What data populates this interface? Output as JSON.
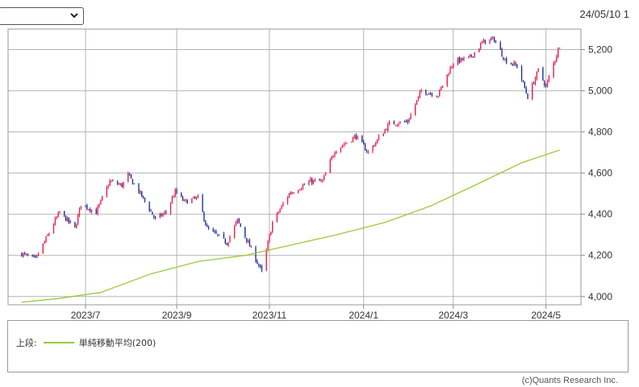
{
  "header": {
    "period_select_value": "",
    "date": "24/05/10 1"
  },
  "legend": {
    "section_label": "上段:",
    "ma_label": "単純移動平均(200)"
  },
  "footer": {
    "copyright": "(c)Quants Research Inc."
  },
  "colors": {
    "up": "#e8174a",
    "down": "#1a2a9a",
    "ma": "#99cc33",
    "grid": "#b4b4b4"
  },
  "chart_data": {
    "type": "candlestick",
    "title": "",
    "xlabel": "",
    "ylabel": "",
    "y_axis_position": "right",
    "ylim": [
      3960,
      5300
    ],
    "yticks": [
      4000,
      4200,
      4400,
      4600,
      4800,
      5000,
      5200
    ],
    "ytick_labels": [
      "4,000",
      "4,200",
      "4,400",
      "4,600",
      "4,800",
      "5,000",
      "5,200"
    ],
    "x_range": [
      "2023-05-13",
      "2024-05-24"
    ],
    "xticks": [
      {
        "date": "2023-07-03",
        "label": "2023/7"
      },
      {
        "date": "2023-09-01",
        "label": "2023/9"
      },
      {
        "date": "2023-11-01",
        "label": "2023/11"
      },
      {
        "date": "2024-01-02",
        "label": "2024/1"
      },
      {
        "date": "2024-03-01",
        "label": "2024/3"
      },
      {
        "date": "2024-05-01",
        "label": "2024/5"
      }
    ],
    "grid": true,
    "close_series": [
      [
        "2023-05-22",
        4208
      ],
      [
        "2023-05-31",
        4180
      ],
      [
        "2023-06-08",
        4295
      ],
      [
        "2023-06-13",
        4370
      ],
      [
        "2023-06-16",
        4410
      ],
      [
        "2023-06-26",
        4330
      ],
      [
        "2023-06-30",
        4450
      ],
      [
        "2023-07-10",
        4410
      ],
      [
        "2023-07-19",
        4560
      ],
      [
        "2023-07-27",
        4540
      ],
      [
        "2023-07-31",
        4590
      ],
      [
        "2023-08-08",
        4500
      ],
      [
        "2023-08-18",
        4375
      ],
      [
        "2023-08-25",
        4410
      ],
      [
        "2023-08-31",
        4510
      ],
      [
        "2023-09-06",
        4460
      ],
      [
        "2023-09-15",
        4480
      ],
      [
        "2023-09-21",
        4330
      ],
      [
        "2023-09-29",
        4290
      ],
      [
        "2023-10-04",
        4260
      ],
      [
        "2023-10-11",
        4370
      ],
      [
        "2023-10-20",
        4230
      ],
      [
        "2023-10-27",
        4120
      ],
      [
        "2023-11-03",
        4360
      ],
      [
        "2023-11-14",
        4500
      ],
      [
        "2023-11-28",
        4560
      ],
      [
        "2023-12-06",
        4560
      ],
      [
        "2023-12-14",
        4710
      ],
      [
        "2023-12-28",
        4780
      ],
      [
        "2024-01-05",
        4700
      ],
      [
        "2024-01-19",
        4840
      ],
      [
        "2024-01-31",
        4850
      ],
      [
        "2024-02-09",
        5000
      ],
      [
        "2024-02-20",
        4980
      ],
      [
        "2024-03-01",
        5140
      ],
      [
        "2024-03-12",
        5160
      ],
      [
        "2024-03-21",
        5240
      ],
      [
        "2024-03-28",
        5250
      ],
      [
        "2024-04-04",
        5150
      ],
      [
        "2024-04-12",
        5120
      ],
      [
        "2024-04-19",
        4970
      ],
      [
        "2024-04-26",
        5100
      ],
      [
        "2024-05-01",
        5020
      ],
      [
        "2024-05-10",
        5220
      ]
    ],
    "series": [
      {
        "name": "単純移動平均(200)",
        "type": "line",
        "points": [
          [
            "2023-05-22",
            3972
          ],
          [
            "2023-06-15",
            3990
          ],
          [
            "2023-07-13",
            4020
          ],
          [
            "2023-08-15",
            4110
          ],
          [
            "2023-09-15",
            4170
          ],
          [
            "2023-10-16",
            4200
          ],
          [
            "2023-11-15",
            4250
          ],
          [
            "2023-12-15",
            4300
          ],
          [
            "2024-01-16",
            4360
          ],
          [
            "2024-02-15",
            4440
          ],
          [
            "2024-03-15",
            4540
          ],
          [
            "2024-04-15",
            4650
          ],
          [
            "2024-05-10",
            4712
          ]
        ]
      }
    ]
  }
}
